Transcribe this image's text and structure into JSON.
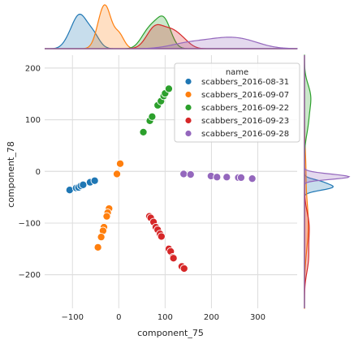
{
  "chart_data": {
    "type": "scatter",
    "xlabel": "component_75",
    "ylabel": "component_78",
    "xlim": [
      -160,
      385
    ],
    "ylim": [
      -265,
      225
    ],
    "xticks": [
      -100,
      0,
      100,
      200,
      300
    ],
    "yticks": [
      -200,
      -100,
      0,
      100,
      200
    ],
    "grid": true,
    "legend": {
      "title": "name",
      "placement": "upper-right"
    },
    "marginals": {
      "top": "kde",
      "right": "kde"
    },
    "series": [
      {
        "name": "scabbers_2016-08-31",
        "color": "#1f77b4",
        "points": [
          [
            -106,
            -36
          ],
          [
            -92,
            -32
          ],
          [
            -87,
            -31
          ],
          [
            -82,
            -28
          ],
          [
            -77,
            -26
          ],
          [
            -62,
            -21
          ],
          [
            -52,
            -18
          ]
        ]
      },
      {
        "name": "scabbers_2016-09-07",
        "color": "#ff7f0e",
        "points": [
          [
            3,
            15
          ],
          [
            -4,
            -5
          ],
          [
            -21,
            -72
          ],
          [
            -24,
            -80
          ],
          [
            -26,
            -87
          ],
          [
            -32,
            -108
          ],
          [
            -34,
            -115
          ],
          [
            -38,
            -127
          ],
          [
            -45,
            -147
          ]
        ]
      },
      {
        "name": "scabbers_2016-09-22",
        "color": "#2ca02c",
        "points": [
          [
            53,
            76
          ],
          [
            67,
            98
          ],
          [
            72,
            106
          ],
          [
            84,
            128
          ],
          [
            91,
            136
          ],
          [
            97,
            146
          ],
          [
            100,
            151
          ],
          [
            108,
            160
          ]
        ]
      },
      {
        "name": "scabbers_2016-09-23",
        "color": "#d62728",
        "points": [
          [
            66,
            -87
          ],
          [
            69,
            -90
          ],
          [
            75,
            -98
          ],
          [
            80,
            -108
          ],
          [
            84,
            -113
          ],
          [
            89,
            -121
          ],
          [
            92,
            -126
          ],
          [
            108,
            -150
          ],
          [
            112,
            -155
          ],
          [
            117,
            -166
          ],
          [
            118,
            -168
          ],
          [
            136,
            -184
          ],
          [
            141,
            -188
          ]
        ]
      },
      {
        "name": "scabbers_2016-09-28",
        "color": "#9467bd",
        "points": [
          [
            140,
            -5
          ],
          [
            155,
            -6
          ],
          [
            199,
            -9
          ],
          [
            212,
            -11
          ],
          [
            233,
            -11
          ],
          [
            258,
            -12
          ],
          [
            264,
            -12
          ],
          [
            288,
            -14
          ]
        ]
      }
    ]
  }
}
